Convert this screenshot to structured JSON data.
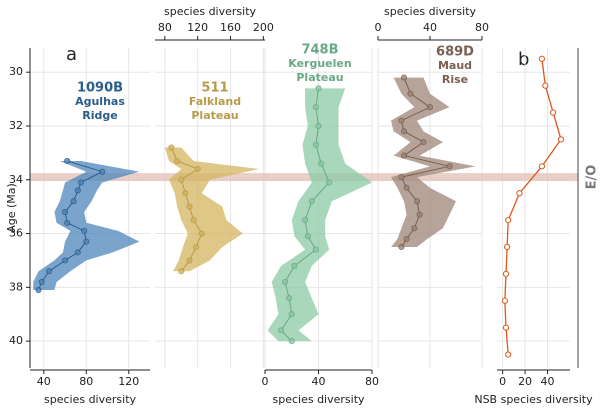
{
  "chart_data": {
    "type": "band-line",
    "ylabel": "Age (Ma)",
    "ylim": [
      29.1,
      41
    ],
    "yticks": [
      30,
      32,
      34,
      36,
      38,
      40
    ],
    "y_inverted": true,
    "grid": true,
    "event": {
      "label": "E/O",
      "age": 33.9,
      "color": "#e2c4ba"
    },
    "panel_letters": [
      "a",
      "b"
    ],
    "panels": [
      {
        "name": "1090B",
        "label_lines": [
          "Agulhas",
          "Ridge"
        ],
        "color": "#2a5d8c",
        "band_color": "#4f85bb",
        "xaxis": "bottom",
        "xlabel": "species diversity",
        "xlim": [
          27,
          140
        ],
        "xticks": [
          40,
          80,
          120
        ],
        "age": [
          33.3,
          33.7,
          34.1,
          34.4,
          34.8,
          35.2,
          35.6,
          35.9,
          36.3,
          36.7,
          37.0,
          37.4,
          37.8,
          38.1
        ],
        "mean": [
          62,
          95,
          75,
          72,
          68,
          60,
          62,
          78,
          80,
          72,
          60,
          45,
          38,
          35
        ],
        "lower": [
          55,
          80,
          60,
          58,
          55,
          50,
          52,
          65,
          60,
          58,
          50,
          35,
          30,
          30
        ],
        "upper": [
          75,
          130,
          95,
          90,
          85,
          78,
          80,
          110,
          130,
          105,
          80,
          65,
          52,
          50
        ]
      },
      {
        "name": "511",
        "label_lines": [
          "Falkland",
          "Plateau"
        ],
        "color": "#b89a4a",
        "band_color": "#d4b460",
        "xaxis": "top",
        "xlabel": "species diversity",
        "xlim": [
          68,
          202
        ],
        "xticks": [
          80,
          120,
          160,
          200
        ],
        "age": [
          32.8,
          33.3,
          33.6,
          34.0,
          34.5,
          35.0,
          35.5,
          36.0,
          36.5,
          37.0,
          37.4
        ],
        "mean": [
          88,
          95,
          120,
          100,
          105,
          110,
          115,
          125,
          118,
          110,
          100
        ],
        "lower": [
          80,
          85,
          100,
          85,
          92,
          95,
          100,
          108,
          102,
          97,
          90
        ],
        "upper": [
          100,
          115,
          195,
          135,
          125,
          150,
          155,
          175,
          150,
          135,
          110
        ]
      },
      {
        "name": "748B",
        "label_lines": [
          "Kerguelen",
          "Plateau"
        ],
        "color": "#6aa985",
        "band_color": "#8cc9a6",
        "xaxis": "bottom",
        "xlabel": "species diversity",
        "xlim": [
          0,
          80
        ],
        "xticks": [
          0,
          40,
          80
        ],
        "age": [
          30.6,
          31.3,
          32.0,
          32.7,
          33.4,
          34.1,
          34.8,
          35.5,
          36.1,
          36.6,
          37.2,
          37.8,
          38.4,
          39.0,
          39.6,
          40.0
        ],
        "mean": [
          40,
          38,
          40,
          38,
          42,
          48,
          35,
          30,
          32,
          38,
          22,
          15,
          18,
          20,
          12,
          20
        ],
        "lower": [
          30,
          30,
          32,
          28,
          30,
          35,
          25,
          20,
          22,
          30,
          12,
          5,
          8,
          10,
          2,
          10
        ],
        "upper": [
          60,
          55,
          55,
          55,
          60,
          80,
          50,
          45,
          45,
          48,
          35,
          30,
          35,
          40,
          25,
          35
        ]
      },
      {
        "name": "689D",
        "label_lines": [
          "Maud",
          "Rise"
        ],
        "color": "#7a5f50",
        "band_color": "#9e8678",
        "xaxis": "top",
        "xlabel": "species diversity",
        "xlim": [
          0,
          80
        ],
        "xticks": [
          0,
          40,
          80
        ],
        "age": [
          30.2,
          30.8,
          31.3,
          31.8,
          32.2,
          32.6,
          33.1,
          33.5,
          33.9,
          34.3,
          34.8,
          35.3,
          35.8,
          36.2,
          36.5
        ],
        "mean": [
          20,
          25,
          40,
          18,
          20,
          35,
          20,
          55,
          18,
          22,
          30,
          32,
          28,
          22,
          18
        ],
        "lower": [
          12,
          18,
          28,
          10,
          12,
          25,
          12,
          40,
          10,
          15,
          20,
          22,
          18,
          15,
          10
        ],
        "upper": [
          35,
          40,
          55,
          30,
          35,
          50,
          32,
          75,
          30,
          40,
          60,
          55,
          50,
          38,
          30
        ]
      },
      {
        "name": null,
        "label_lines": [],
        "color": "#e0561b",
        "band_color": null,
        "xaxis": "bottom",
        "xlabel": "NSB species diversity",
        "xlim": [
          -5,
          60
        ],
        "xticks": [
          0,
          20,
          40
        ],
        "age": [
          29.5,
          30.5,
          31.5,
          32.5,
          33.5,
          34.5,
          35.5,
          36.5,
          37.5,
          38.5,
          39.5,
          40.5
        ],
        "mean": [
          35,
          38,
          45,
          52,
          35,
          15,
          5,
          4,
          3,
          2,
          3,
          5
        ],
        "lower": null,
        "upper": null
      }
    ]
  }
}
